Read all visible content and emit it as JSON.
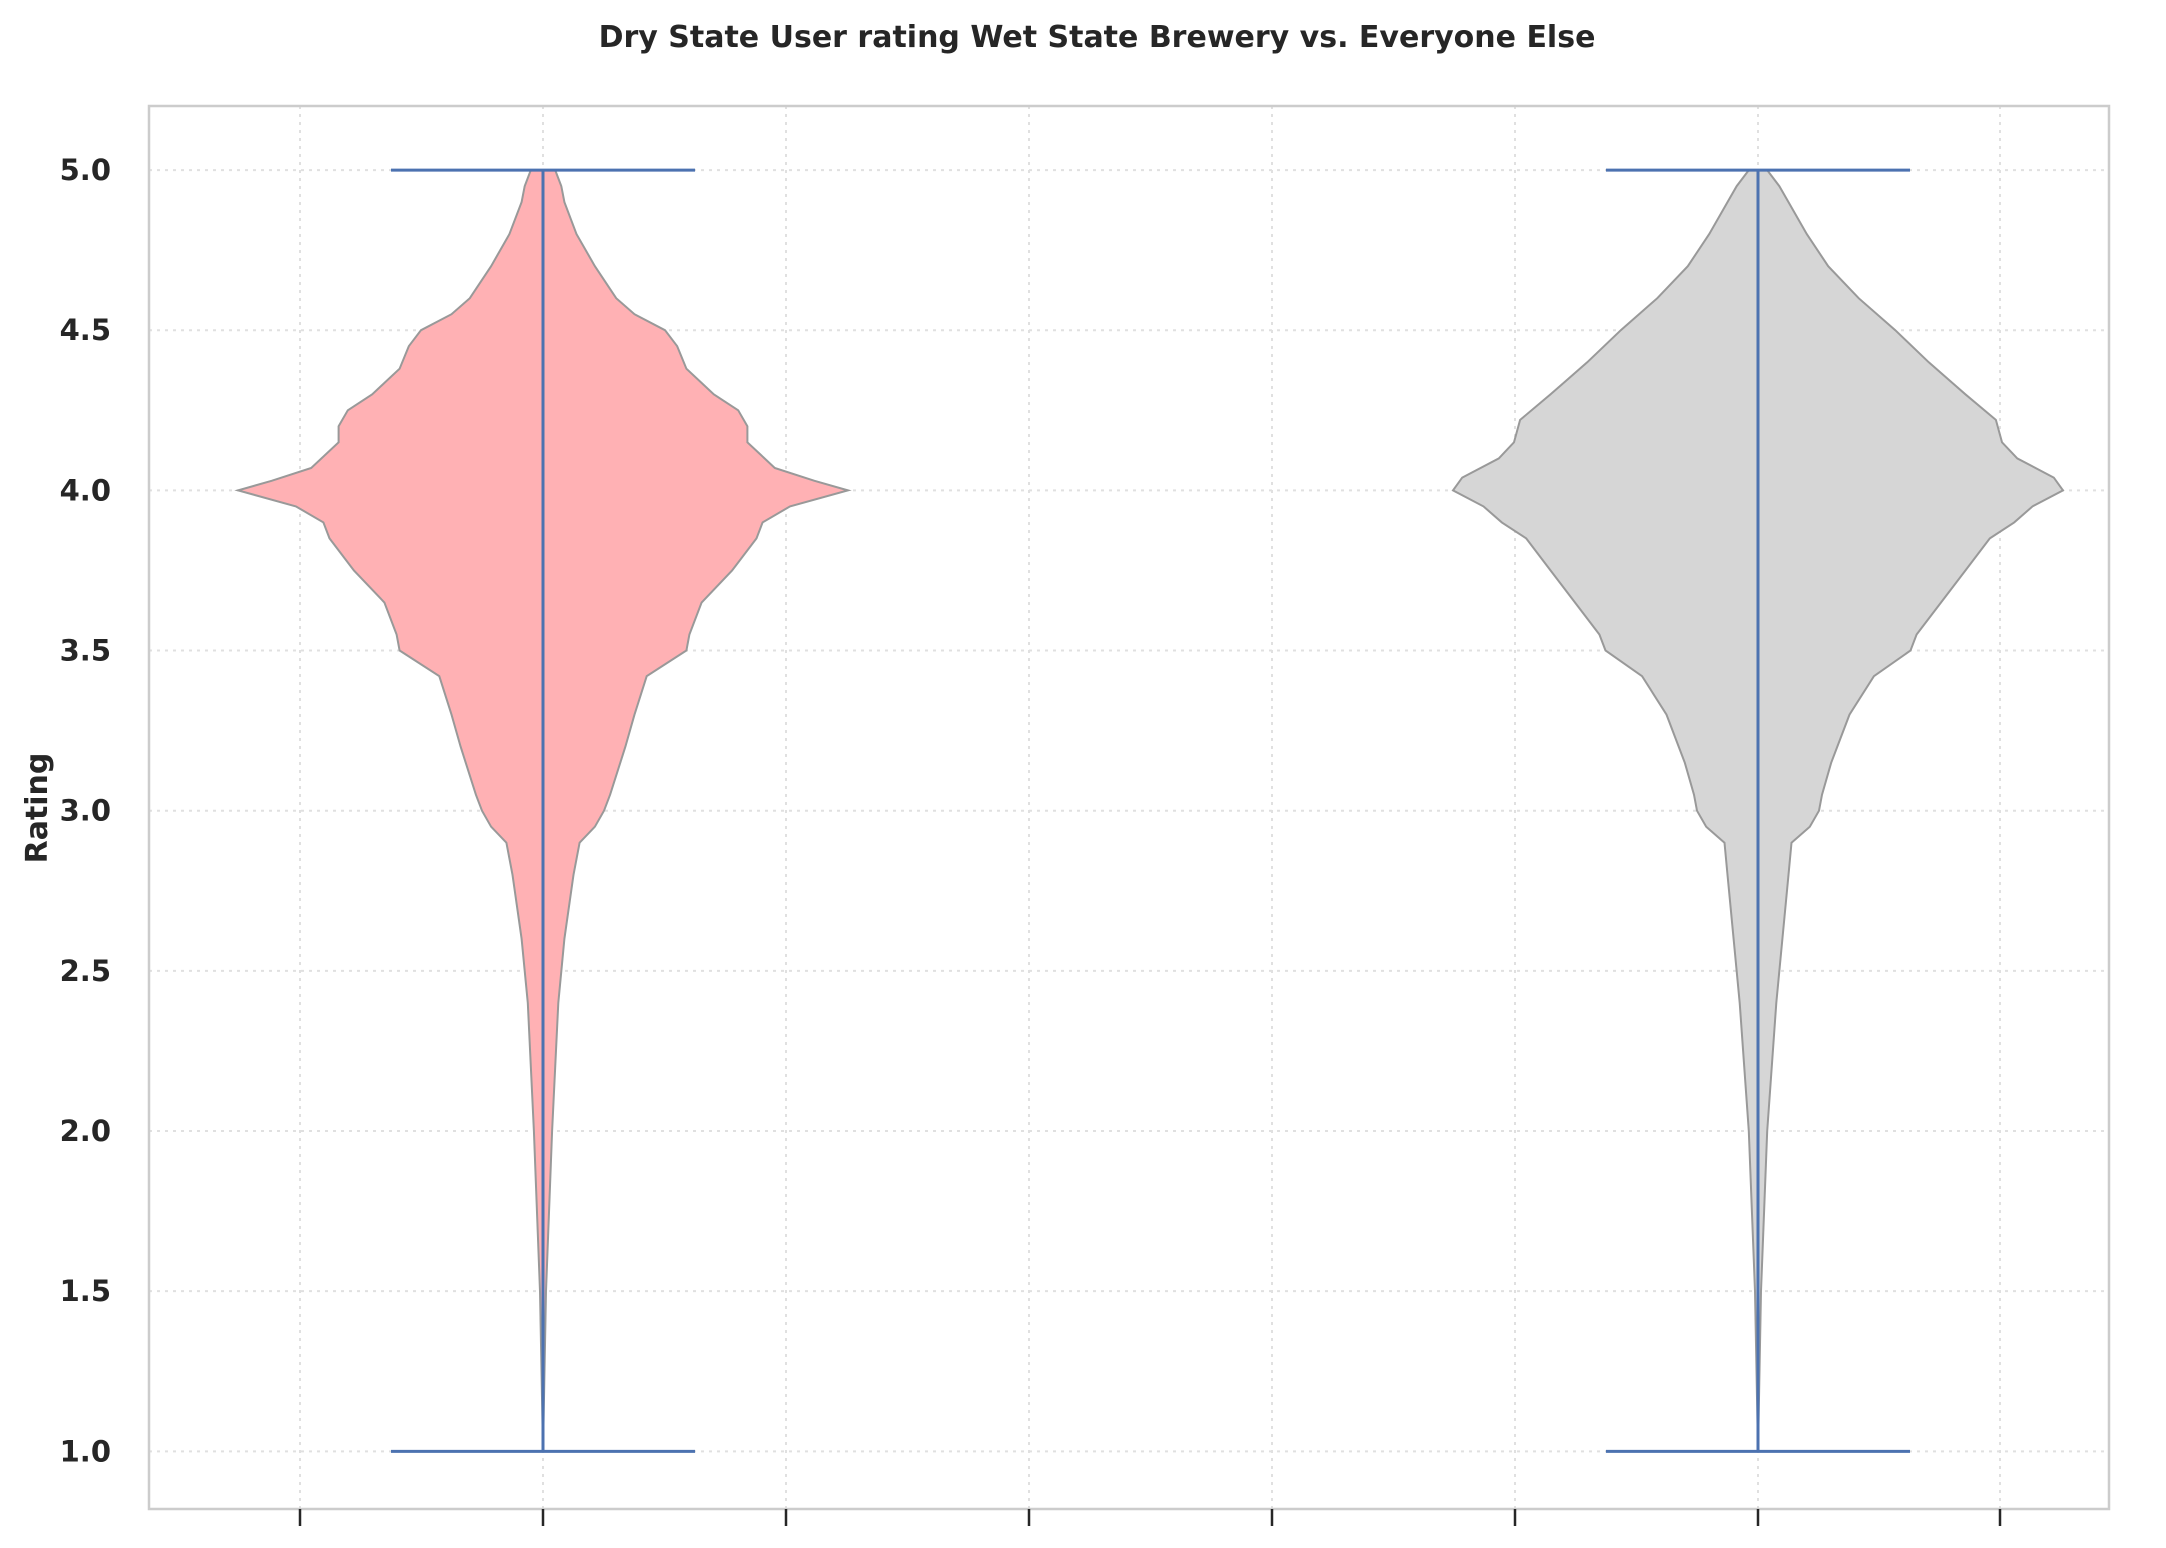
{
  "chart_data": {
    "type": "violin",
    "title": "Dry State User rating Wet State Brewery vs. Everyone Else",
    "xlabel": "",
    "ylabel": "Rating",
    "ylim": [
      0.82,
      5.2
    ],
    "yticks": [
      "1.0",
      "1.5",
      "2.0",
      "2.5",
      "3.0",
      "3.5",
      "4.0",
      "4.5",
      "5.0"
    ],
    "xtick_count": 8,
    "grid": true,
    "colors": {
      "violin_1_fill": "#ffb1b4",
      "violin_2_fill": "#d6d6d6",
      "violin_edge": "#999999",
      "extrema_lines": "#4c72b0",
      "grid": "#e0e0e0",
      "frame": "#cccccc"
    },
    "series": [
      {
        "min": 1.0,
        "max": 5.0,
        "density_profile": [
          [
            1.0,
            0.0
          ],
          [
            1.5,
            0.01
          ],
          [
            2.0,
            0.03
          ],
          [
            2.4,
            0.05
          ],
          [
            2.6,
            0.07
          ],
          [
            2.8,
            0.1
          ],
          [
            2.9,
            0.12
          ],
          [
            2.95,
            0.17
          ],
          [
            3.0,
            0.2
          ],
          [
            3.05,
            0.22
          ],
          [
            3.2,
            0.27
          ],
          [
            3.3,
            0.3
          ],
          [
            3.42,
            0.34
          ],
          [
            3.5,
            0.47
          ],
          [
            3.55,
            0.48
          ],
          [
            3.65,
            0.52
          ],
          [
            3.75,
            0.62
          ],
          [
            3.85,
            0.7
          ],
          [
            3.9,
            0.72
          ],
          [
            3.95,
            0.81
          ],
          [
            4.0,
            1.0
          ],
          [
            4.03,
            0.89
          ],
          [
            4.07,
            0.76
          ],
          [
            4.15,
            0.67
          ],
          [
            4.2,
            0.67
          ],
          [
            4.25,
            0.64
          ],
          [
            4.3,
            0.56
          ],
          [
            4.38,
            0.47
          ],
          [
            4.45,
            0.44
          ],
          [
            4.5,
            0.4
          ],
          [
            4.55,
            0.3
          ],
          [
            4.6,
            0.24
          ],
          [
            4.7,
            0.17
          ],
          [
            4.8,
            0.11
          ],
          [
            4.9,
            0.07
          ],
          [
            4.95,
            0.06
          ],
          [
            5.0,
            0.04
          ]
        ]
      },
      {
        "min": 1.0,
        "max": 5.0,
        "density_profile": [
          [
            1.0,
            0.0
          ],
          [
            1.5,
            0.01
          ],
          [
            2.0,
            0.03
          ],
          [
            2.4,
            0.06
          ],
          [
            2.6,
            0.08
          ],
          [
            2.8,
            0.1
          ],
          [
            2.9,
            0.11
          ],
          [
            2.95,
            0.17
          ],
          [
            3.0,
            0.2
          ],
          [
            3.05,
            0.21
          ],
          [
            3.15,
            0.24
          ],
          [
            3.3,
            0.3
          ],
          [
            3.42,
            0.38
          ],
          [
            3.5,
            0.5
          ],
          [
            3.55,
            0.52
          ],
          [
            3.6,
            0.56
          ],
          [
            3.75,
            0.68
          ],
          [
            3.85,
            0.76
          ],
          [
            3.9,
            0.84
          ],
          [
            3.95,
            0.9
          ],
          [
            4.0,
            1.0
          ],
          [
            4.04,
            0.97
          ],
          [
            4.1,
            0.85
          ],
          [
            4.15,
            0.8
          ],
          [
            4.22,
            0.78
          ],
          [
            4.3,
            0.68
          ],
          [
            4.4,
            0.56
          ],
          [
            4.5,
            0.45
          ],
          [
            4.6,
            0.33
          ],
          [
            4.7,
            0.23
          ],
          [
            4.8,
            0.16
          ],
          [
            4.9,
            0.1
          ],
          [
            4.95,
            0.07
          ],
          [
            5.0,
            0.03
          ]
        ]
      }
    ]
  }
}
